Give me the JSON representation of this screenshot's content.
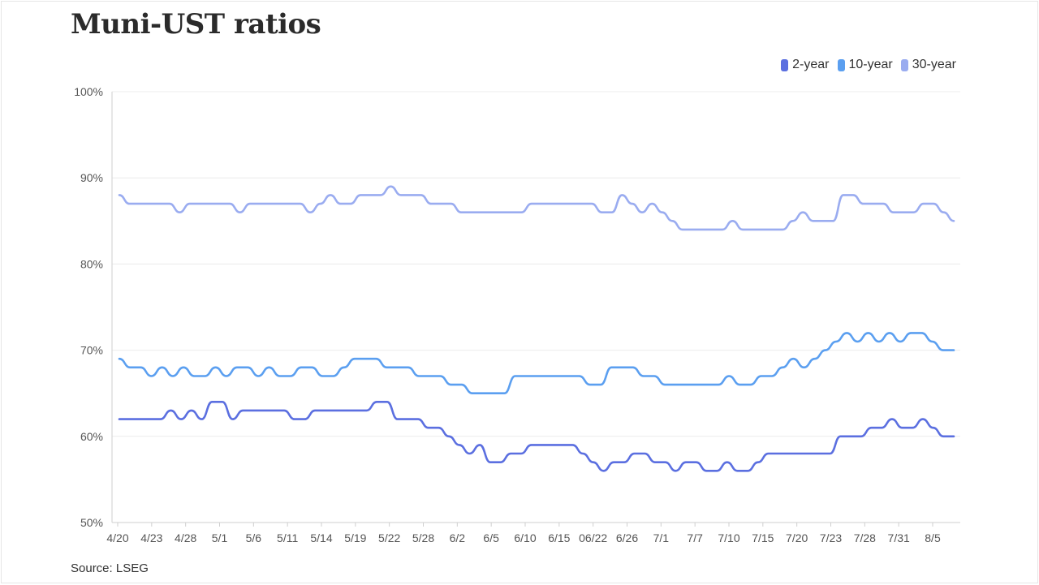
{
  "title": "Muni-UST ratios",
  "source": "Source: LSEG",
  "colors": {
    "2-year": "#5b6fe0",
    "10-year": "#5b9ff0",
    "30-year": "#9aacf0",
    "grid": "#ececec",
    "axis": "#555555"
  },
  "chart_data": {
    "type": "line",
    "title": "Muni-UST ratios",
    "xlabel": "",
    "ylabel": "",
    "ylim": [
      50,
      100
    ],
    "yticks": [
      "50%",
      "60%",
      "70%",
      "80%",
      "90%",
      "100%"
    ],
    "ytick_values": [
      50,
      60,
      70,
      80,
      90,
      100
    ],
    "xticks": [
      "4/20",
      "4/23",
      "4/28",
      "5/1",
      "5/6",
      "5/11",
      "5/14",
      "5/19",
      "5/22",
      "5/28",
      "6/2",
      "6/5",
      "6/10",
      "6/15",
      "06/22",
      "6/26",
      "7/1",
      "7/7",
      "7/10",
      "7/15",
      "7/20",
      "7/23",
      "7/28",
      "7/31",
      "8/5"
    ],
    "grid": "horizontal",
    "legend_position": "top-right",
    "series": [
      {
        "name": "2-year",
        "values": [
          62,
          62,
          62,
          62,
          62,
          63,
          62,
          63,
          62,
          64,
          64,
          62,
          63,
          63,
          63,
          63,
          63,
          62,
          62,
          63,
          63,
          63,
          63,
          63,
          63,
          64,
          64,
          62,
          62,
          62,
          61,
          61,
          60,
          59,
          58,
          59,
          57,
          57,
          58,
          58,
          59,
          59,
          59,
          59,
          59,
          58,
          57,
          56,
          57,
          57,
          58,
          58,
          57,
          57,
          56,
          57,
          57,
          56,
          56,
          57,
          56,
          56,
          57,
          58,
          58,
          58,
          58,
          58,
          58,
          58,
          60,
          60,
          60,
          61,
          61,
          62,
          61,
          61,
          62,
          61,
          60,
          60
        ]
      },
      {
        "name": "10-year",
        "values": [
          69,
          68,
          68,
          67,
          68,
          67,
          68,
          67,
          67,
          68,
          67,
          68,
          68,
          67,
          68,
          67,
          67,
          68,
          68,
          67,
          67,
          68,
          69,
          69,
          69,
          68,
          68,
          68,
          67,
          67,
          67,
          66,
          66,
          65,
          65,
          65,
          65,
          67,
          67,
          67,
          67,
          67,
          67,
          67,
          66,
          66,
          68,
          68,
          68,
          67,
          67,
          66,
          66,
          66,
          66,
          66,
          66,
          67,
          66,
          66,
          67,
          67,
          68,
          69,
          68,
          69,
          70,
          71,
          72,
          71,
          72,
          71,
          72,
          71,
          72,
          72,
          71,
          70,
          70
        ]
      },
      {
        "name": "30-year",
        "values": [
          88,
          87,
          87,
          87,
          87,
          87,
          86,
          87,
          87,
          87,
          87,
          87,
          86,
          87,
          87,
          87,
          87,
          87,
          87,
          86,
          87,
          88,
          87,
          87,
          88,
          88,
          88,
          89,
          88,
          88,
          88,
          87,
          87,
          87,
          86,
          86,
          86,
          86,
          86,
          86,
          86,
          87,
          87,
          87,
          87,
          87,
          87,
          87,
          86,
          86,
          88,
          87,
          86,
          87,
          86,
          85,
          84,
          84,
          84,
          84,
          84,
          85,
          84,
          84,
          84,
          84,
          84,
          85,
          86,
          85,
          85,
          85,
          88,
          88,
          87,
          87,
          87,
          86,
          86,
          86,
          87,
          87,
          86,
          85
        ]
      }
    ]
  }
}
